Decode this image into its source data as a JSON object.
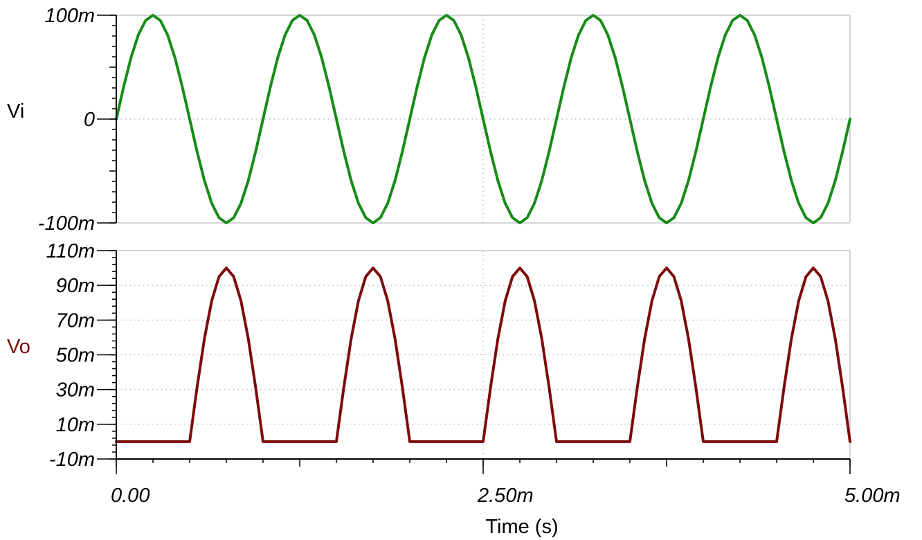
{
  "chart_data": [
    {
      "type": "line",
      "ylabel": "Vi",
      "xlabel": "",
      "xlim": [
        0,
        0.005
      ],
      "ylim": [
        -0.1,
        0.1
      ],
      "grid": true,
      "y_ticks": [
        {
          "value": 0.1,
          "label": "100m"
        },
        {
          "value": 0,
          "label": "0"
        },
        {
          "value": -0.1,
          "label": "-100m"
        }
      ],
      "x": [
        0,
        5e-05,
        0.0001,
        0.00015,
        0.0002,
        0.00025,
        0.0003,
        0.00035,
        0.0004,
        0.00045,
        0.0005,
        0.00055,
        0.0006,
        0.00065,
        0.0007,
        0.00075,
        0.0008,
        0.00085,
        0.0009,
        0.00095,
        0.001,
        0.00105,
        0.0011,
        0.00115,
        0.0012,
        0.00125,
        0.0013,
        0.00135,
        0.0014,
        0.00145,
        0.0015,
        0.00155,
        0.0016,
        0.00165,
        0.0017,
        0.00175,
        0.0018,
        0.00185,
        0.0019,
        0.00195,
        0.002,
        0.00205,
        0.0021,
        0.00215,
        0.0022,
        0.00225,
        0.0023,
        0.00235,
        0.0024,
        0.00245,
        0.0025,
        0.00255,
        0.0026,
        0.00265,
        0.0027,
        0.00275,
        0.0028,
        0.00285,
        0.0029,
        0.00295,
        0.003,
        0.00305,
        0.0031,
        0.00315,
        0.0032,
        0.00325,
        0.0033,
        0.00335,
        0.0034,
        0.00345,
        0.0035,
        0.00355,
        0.0036,
        0.00365,
        0.0037,
        0.00375,
        0.0038,
        0.00385,
        0.0039,
        0.00395,
        0.004,
        0.00405,
        0.0041,
        0.00415,
        0.0042,
        0.00425,
        0.0043,
        0.00435,
        0.0044,
        0.00445,
        0.0045,
        0.00455,
        0.0046,
        0.00465,
        0.0047,
        0.00475,
        0.0048,
        0.00485,
        0.0049,
        0.00495,
        0.005
      ],
      "series": [
        {
          "color": "#178b17",
          "values": [
            0,
            0.031,
            0.059,
            0.081,
            0.095,
            0.1,
            0.095,
            0.081,
            0.059,
            0.031,
            0,
            -0.031,
            -0.059,
            -0.081,
            -0.095,
            -0.1,
            -0.095,
            -0.081,
            -0.059,
            -0.031,
            0,
            0.031,
            0.059,
            0.081,
            0.095,
            0.1,
            0.095,
            0.081,
            0.059,
            0.031,
            0,
            -0.031,
            -0.059,
            -0.081,
            -0.095,
            -0.1,
            -0.095,
            -0.081,
            -0.059,
            -0.031,
            0,
            0.031,
            0.059,
            0.081,
            0.095,
            0.1,
            0.095,
            0.081,
            0.059,
            0.031,
            0,
            -0.031,
            -0.059,
            -0.081,
            -0.095,
            -0.1,
            -0.095,
            -0.081,
            -0.059,
            -0.031,
            0,
            0.031,
            0.059,
            0.081,
            0.095,
            0.1,
            0.095,
            0.081,
            0.059,
            0.031,
            0,
            -0.031,
            -0.059,
            -0.081,
            -0.095,
            -0.1,
            -0.095,
            -0.081,
            -0.059,
            -0.031,
            0,
            0.031,
            0.059,
            0.081,
            0.095,
            0.1,
            0.095,
            0.081,
            0.059,
            0.031,
            0,
            -0.031,
            -0.059,
            -0.081,
            -0.095,
            -0.1,
            -0.095,
            -0.081,
            -0.059,
            -0.031,
            0
          ]
        }
      ]
    },
    {
      "type": "line",
      "ylabel": "Vo",
      "xlabel": "Time (s)",
      "xlim": [
        0,
        0.005
      ],
      "ylim": [
        -0.01,
        0.11
      ],
      "grid": true,
      "y_ticks": [
        {
          "value": 0.11,
          "label": "110m"
        },
        {
          "value": 0.09,
          "label": "90m"
        },
        {
          "value": 0.07,
          "label": "70m"
        },
        {
          "value": 0.05,
          "label": "50m"
        },
        {
          "value": 0.03,
          "label": "30m"
        },
        {
          "value": 0.01,
          "label": "10m"
        },
        {
          "value": -0.01,
          "label": "-10m"
        }
      ],
      "x_ticks": [
        {
          "value": 0,
          "label": "0.00"
        },
        {
          "value": 0.0025,
          "label": "2.50m"
        },
        {
          "value": 0.005,
          "label": "5.00m"
        }
      ],
      "x": [
        0,
        5e-05,
        0.0001,
        0.00015,
        0.0002,
        0.00025,
        0.0003,
        0.00035,
        0.0004,
        0.00045,
        0.0005,
        0.00055,
        0.0006,
        0.00065,
        0.0007,
        0.00075,
        0.0008,
        0.00085,
        0.0009,
        0.00095,
        0.001,
        0.00105,
        0.0011,
        0.00115,
        0.0012,
        0.00125,
        0.0013,
        0.00135,
        0.0014,
        0.00145,
        0.0015,
        0.00155,
        0.0016,
        0.00165,
        0.0017,
        0.00175,
        0.0018,
        0.00185,
        0.0019,
        0.00195,
        0.002,
        0.00205,
        0.0021,
        0.00215,
        0.0022,
        0.00225,
        0.0023,
        0.00235,
        0.0024,
        0.00245,
        0.0025,
        0.00255,
        0.0026,
        0.00265,
        0.0027,
        0.00275,
        0.0028,
        0.00285,
        0.0029,
        0.00295,
        0.003,
        0.00305,
        0.0031,
        0.00315,
        0.0032,
        0.00325,
        0.0033,
        0.00335,
        0.0034,
        0.00345,
        0.0035,
        0.00355,
        0.0036,
        0.00365,
        0.0037,
        0.00375,
        0.0038,
        0.00385,
        0.0039,
        0.00395,
        0.004,
        0.00405,
        0.0041,
        0.00415,
        0.0042,
        0.00425,
        0.0043,
        0.00435,
        0.0044,
        0.00445,
        0.0045,
        0.00455,
        0.0046,
        0.00465,
        0.0047,
        0.00475,
        0.0048,
        0.00485,
        0.0049,
        0.00495,
        0.005
      ],
      "series": [
        {
          "color": "#7d0b0b",
          "values": [
            0,
            0,
            0,
            0,
            0,
            0,
            0,
            0,
            0,
            0,
            0,
            0.031,
            0.059,
            0.081,
            0.095,
            0.1,
            0.095,
            0.081,
            0.059,
            0.031,
            0,
            0,
            0,
            0,
            0,
            0,
            0,
            0,
            0,
            0,
            0,
            0.031,
            0.059,
            0.081,
            0.095,
            0.1,
            0.095,
            0.081,
            0.059,
            0.031,
            0,
            0,
            0,
            0,
            0,
            0,
            0,
            0,
            0,
            0,
            0,
            0.031,
            0.059,
            0.081,
            0.095,
            0.1,
            0.095,
            0.081,
            0.059,
            0.031,
            0,
            0,
            0,
            0,
            0,
            0,
            0,
            0,
            0,
            0,
            0,
            0.031,
            0.059,
            0.081,
            0.095,
            0.1,
            0.095,
            0.081,
            0.059,
            0.031,
            0,
            0,
            0,
            0,
            0,
            0,
            0,
            0,
            0,
            0,
            0,
            0.031,
            0.059,
            0.081,
            0.095,
            0.1,
            0.095,
            0.081,
            0.059,
            0.031,
            0
          ]
        }
      ]
    }
  ]
}
